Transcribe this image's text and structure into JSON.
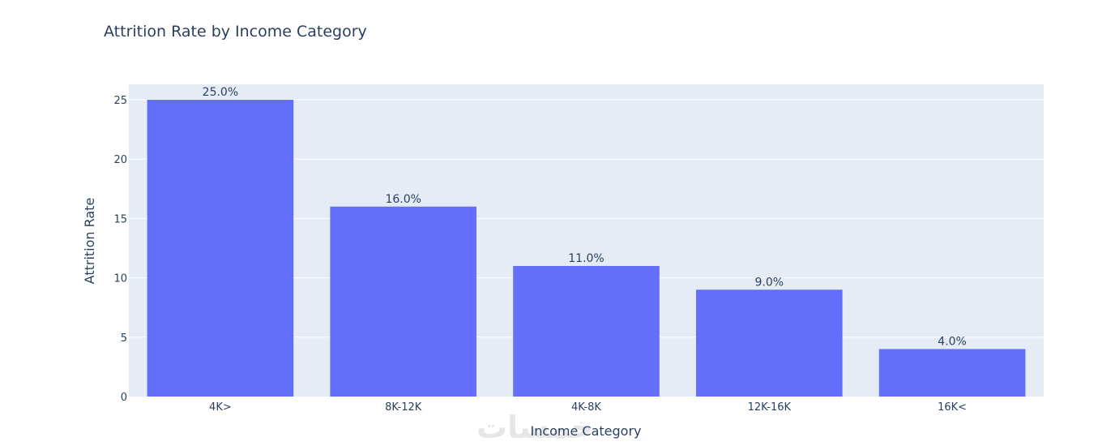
{
  "chart_data": {
    "type": "bar",
    "title": "Attrition Rate by Income Category",
    "xlabel": "Income Category",
    "ylabel": "Attrition Rate",
    "categories": [
      "4K>",
      "8K-12K",
      "4K-8K",
      "12K-16K",
      "16K<"
    ],
    "values": [
      25,
      16,
      11,
      9,
      4
    ],
    "data_labels": [
      "25.0%",
      "16.0%",
      "11.0%",
      "9.0%",
      "4.0%"
    ],
    "ylim": [
      0,
      26.3
    ],
    "yticks": [
      0,
      5,
      10,
      15,
      20,
      25
    ],
    "grid": true,
    "legend": "none",
    "colors": {
      "bar": "#636efa",
      "plot_bg": "#e5ecf6",
      "grid": "#ffffff",
      "text": "#2a3f5f"
    }
  },
  "watermark": {
    "text": "خمسات"
  }
}
